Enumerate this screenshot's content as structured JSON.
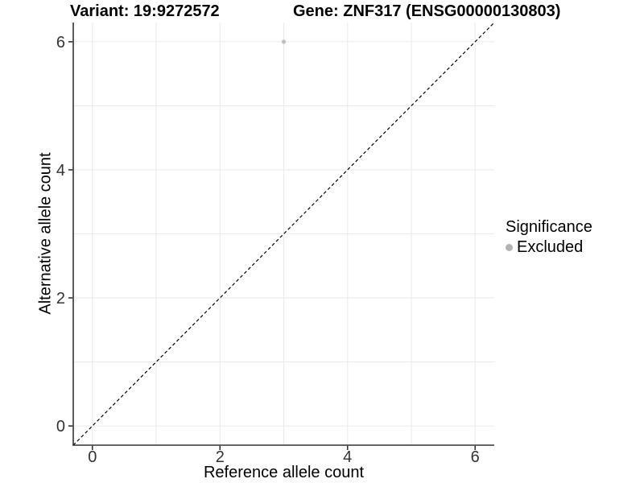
{
  "header": {
    "title_variant": "Variant: 19:9272572",
    "title_gene": "Gene: ZNF317 (ENSG00000130803)"
  },
  "chart_data": {
    "type": "scatter",
    "title_left": "Variant: 19:9272572",
    "title_right": "Gene: ZNF317 (ENSG00000130803)",
    "xlabel": "Reference allele count",
    "ylabel": "Alternative allele count",
    "xlim": [
      -0.3,
      6.3
    ],
    "ylim": [
      -0.3,
      6.3
    ],
    "x_ticks": [
      0,
      2,
      4,
      6
    ],
    "y_ticks": [
      0,
      2,
      4,
      6
    ],
    "grid_positions": [
      0,
      1,
      2,
      3,
      4,
      5,
      6
    ],
    "grid": "on",
    "identity_line": {
      "equation": "y = x",
      "style": "dashed",
      "from": -0.3,
      "to": 6.3
    },
    "series": [
      {
        "name": "Excluded",
        "color": "#bfbfbf",
        "points": [
          {
            "x": 3,
            "y": 6
          }
        ]
      }
    ],
    "legend": {
      "title": "Significance",
      "position": "right",
      "entries": [
        {
          "label": "Excluded",
          "color": "#b3b3b3"
        }
      ]
    },
    "colors": {
      "grid": "#ebebeb",
      "axis_line": "#333333",
      "tick": "#333333",
      "tick_label": "#333333",
      "identity_line": "#000000",
      "panel_background": "#ffffff"
    }
  }
}
